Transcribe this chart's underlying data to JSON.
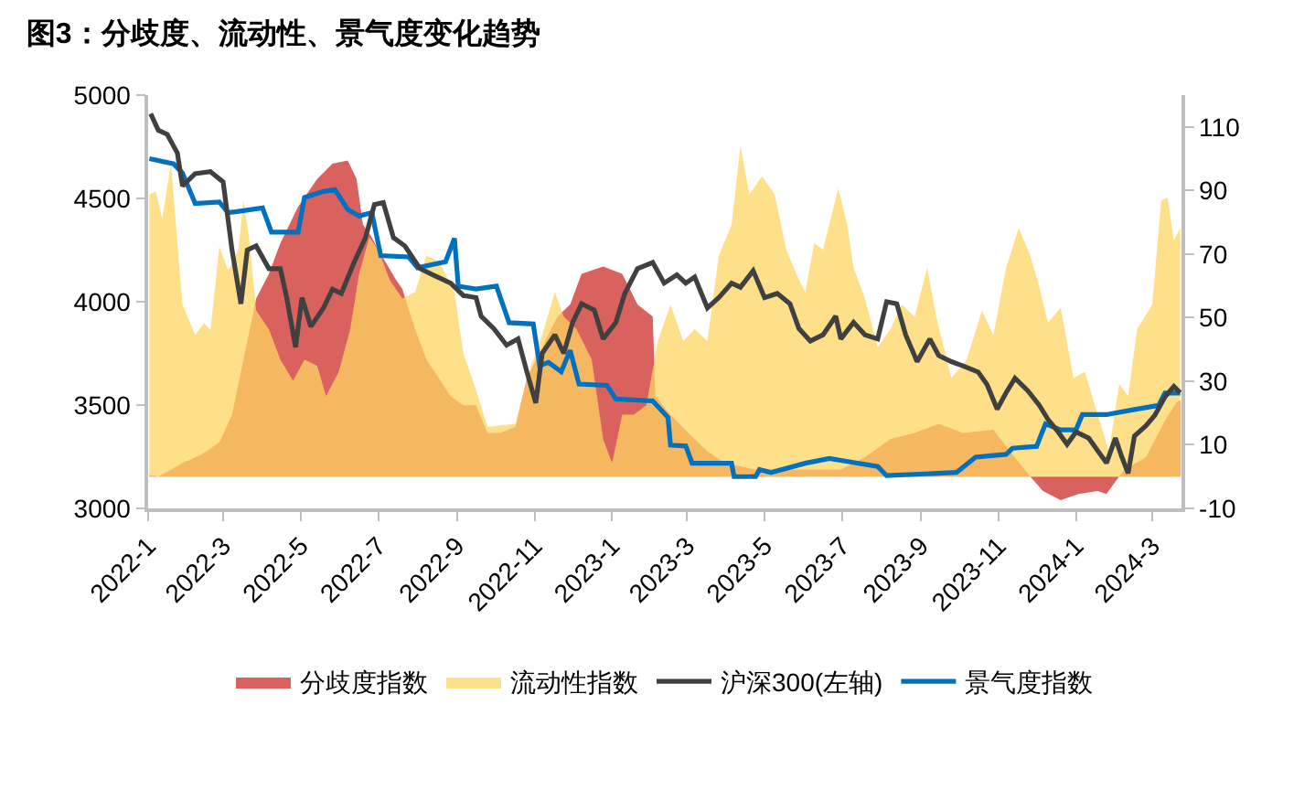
{
  "chart_data": {
    "type": "area",
    "title": "图3：分歧度、流动性、景气度变化趋势",
    "xlim": [
      "2022-01-01",
      "2024-03-24"
    ],
    "xticks": [
      {
        "value": "2022-01-01",
        "label": "2022-1"
      },
      {
        "value": "2022-03-01",
        "label": "2022-3"
      },
      {
        "value": "2022-05-01",
        "label": "2022-5"
      },
      {
        "value": "2022-07-01",
        "label": "2022-7"
      },
      {
        "value": "2022-09-01",
        "label": "2022-9"
      },
      {
        "value": "2022-11-01",
        "label": "2022-11"
      },
      {
        "value": "2023-01-01",
        "label": "2023-1"
      },
      {
        "value": "2023-03-01",
        "label": "2023-3"
      },
      {
        "value": "2023-05-01",
        "label": "2023-5"
      },
      {
        "value": "2023-07-01",
        "label": "2023-7"
      },
      {
        "value": "2023-09-01",
        "label": "2023-9"
      },
      {
        "value": "2023-11-01",
        "label": "2023-11"
      },
      {
        "value": "2024-01-01",
        "label": "2024-1"
      },
      {
        "value": "2024-03-01",
        "label": "2024-3"
      }
    ],
    "ylim": [
      3000,
      5000
    ],
    "yticks": [
      3000,
      3500,
      4000,
      4500,
      5000
    ],
    "y2lim": [
      -10,
      120
    ],
    "y2ticks": [
      -10,
      10,
      30,
      50,
      70,
      90,
      110
    ],
    "legend": "bottom",
    "series": [
      {
        "name": "分歧度指数",
        "axis": "y2",
        "color": "#d9625e",
        "x": [
          "2022-01-02",
          "2022-01-09",
          "2022-01-28",
          "2022-02-12",
          "2022-02-26",
          "2022-03-08",
          "2022-03-17",
          "2022-03-27",
          "2022-04-06",
          "2022-04-15",
          "2022-04-29",
          "2022-05-14",
          "2022-05-26",
          "2022-06-07",
          "2022-06-14",
          "2022-06-19",
          "2022-06-26",
          "2022-07-01",
          "2022-07-15",
          "2022-07-20",
          "2022-07-30",
          "2022-08-08",
          "2022-08-27",
          "2022-09-06",
          "2022-09-16",
          "2022-09-23",
          "2022-09-25",
          "2022-10-05",
          "2022-10-17",
          "2022-10-26",
          "2022-11-07",
          "2022-11-19",
          "2022-11-29",
          "2022-12-08",
          "2022-12-25",
          "2023-01-09",
          "2023-01-21",
          "2023-02-02",
          "2023-02-04",
          "2023-02-16",
          "2023-03-02",
          "2023-03-17",
          "2023-03-31",
          "2023-04-24",
          "2023-06-02",
          "2023-06-30",
          "2023-07-19",
          "2023-08-08",
          "2023-08-27",
          "2023-09-15",
          "2023-10-04",
          "2023-10-28",
          "2023-11-12",
          "2023-11-26",
          "2023-12-06",
          "2023-12-20",
          "2024-01-03",
          "2024-01-18",
          "2024-01-25",
          "2024-02-01",
          "2024-02-08",
          "2024-02-25",
          "2024-03-11",
          "2024-03-20",
          "2024-03-23"
        ],
        "values": [
          0.5,
          0,
          4.2,
          7,
          10.8,
          19.5,
          36.8,
          56,
          63.8,
          73.4,
          84.9,
          93.6,
          98.4,
          99.4,
          93.6,
          79.2,
          75.3,
          71.4,
          61.9,
          59,
          46.4,
          36.8,
          25.3,
          22.4,
          22.4,
          15.7,
          13.7,
          13.7,
          15.7,
          31,
          40.7,
          50.3,
          54.1,
          63.8,
          66.1,
          63.8,
          54.1,
          50.3,
          25.3,
          19.5,
          13.7,
          8,
          4.2,
          2.2,
          2.2,
          2.2,
          6.1,
          11.8,
          13.7,
          16.6,
          13.7,
          14.7,
          7,
          0,
          -4.5,
          -7.4,
          -5.5,
          -4.5,
          -5.5,
          -1.6,
          2.2,
          6.1,
          17.6,
          23.4,
          24
        ]
      },
      {
        "name": "流动性指数",
        "axis": "y2",
        "color": "#fdd663",
        "x": [
          "2022-01-02",
          "2022-01-07",
          "2022-01-12",
          "2022-01-19",
          "2022-01-28",
          "2022-02-07",
          "2022-02-14",
          "2022-02-19",
          "2022-02-26",
          "2022-03-05",
          "2022-03-13",
          "2022-03-17",
          "2022-03-22",
          "2022-03-27",
          "2022-04-06",
          "2022-04-15",
          "2022-04-25",
          "2022-05-04",
          "2022-05-14",
          "2022-05-21",
          "2022-05-31",
          "2022-06-09",
          "2022-06-16",
          "2022-06-24",
          "2022-07-01",
          "2022-07-10",
          "2022-07-20",
          "2022-07-30",
          "2022-08-08",
          "2022-08-18",
          "2022-08-30",
          "2022-09-06",
          "2022-09-16",
          "2022-09-25",
          "2022-10-17",
          "2022-10-26",
          "2022-11-07",
          "2022-11-17",
          "2022-11-24",
          "2022-12-04",
          "2022-12-16",
          "2022-12-25",
          "2023-01-01",
          "2023-01-09",
          "2023-01-18",
          "2023-01-28",
          "2023-02-06",
          "2023-02-16",
          "2023-02-26",
          "2023-03-07",
          "2023-03-17",
          "2023-03-26",
          "2023-04-05",
          "2023-04-12",
          "2023-04-19",
          "2023-04-29",
          "2023-05-09",
          "2023-05-18",
          "2023-05-28",
          "2023-06-02",
          "2023-06-09",
          "2023-06-16",
          "2023-06-28",
          "2023-07-05",
          "2023-07-10",
          "2023-07-19",
          "2023-07-29",
          "2023-08-08",
          "2023-08-17",
          "2023-08-27",
          "2023-09-06",
          "2023-09-13",
          "2023-09-25",
          "2023-10-07",
          "2023-10-19",
          "2023-10-28",
          "2023-11-07",
          "2023-11-17",
          "2023-11-26",
          "2023-12-03",
          "2023-12-10",
          "2023-12-20",
          "2023-12-30",
          "2024-01-08",
          "2024-01-18",
          "2024-01-27",
          "2024-02-04",
          "2024-02-11",
          "2024-02-18",
          "2024-03-01",
          "2024-03-08",
          "2024-03-13",
          "2024-03-18",
          "2024-03-23"
        ],
        "values": [
          88.7,
          89.7,
          81,
          98.4,
          54.1,
          44.5,
          48.4,
          46,
          72.4,
          64.7,
          71.4,
          86.8,
          73.4,
          52.2,
          46.4,
          36.8,
          30.1,
          36.8,
          34.9,
          25.3,
          33,
          46.4,
          63.8,
          75.3,
          71.4,
          61.9,
          56,
          58,
          69.5,
          67.6,
          58,
          38.8,
          27.2,
          15.7,
          16.6,
          31,
          44.5,
          58,
          50.3,
          46.4,
          36.8,
          11.8,
          4.2,
          19.5,
          19.5,
          22.4,
          42.6,
          54.1,
          42.6,
          46.4,
          42.6,
          69.5,
          79.2,
          104.2,
          88.7,
          94.5,
          88.7,
          71.4,
          61.9,
          58,
          73.4,
          71.4,
          90.7,
          79.2,
          65.7,
          56,
          40.7,
          46.4,
          54.1,
          50.3,
          65.7,
          50.3,
          31,
          36.8,
          52.2,
          44.5,
          65.7,
          78.2,
          69.5,
          59.9,
          48.4,
          53.2,
          31,
          33,
          19.5,
          8,
          29.1,
          25.3,
          46.4,
          54.1,
          86.8,
          87.8,
          74.3,
          78.2
        ]
      },
      {
        "name": "沪深300(左轴)",
        "type": "line",
        "axis": "y",
        "color": "#404040",
        "x": [
          "2022-01-03",
          "2022-01-09",
          "2022-01-16",
          "2022-01-24",
          "2022-01-28",
          "2022-02-07",
          "2022-02-19",
          "2022-03-01",
          "2022-03-08",
          "2022-03-15",
          "2022-03-20",
          "2022-03-27",
          "2022-04-06",
          "2022-04-15",
          "2022-04-20",
          "2022-04-27",
          "2022-05-02",
          "2022-05-09",
          "2022-05-19",
          "2022-05-26",
          "2022-06-02",
          "2022-06-12",
          "2022-06-21",
          "2022-06-28",
          "2022-07-05",
          "2022-07-13",
          "2022-07-22",
          "2022-08-03",
          "2022-08-13",
          "2022-08-27",
          "2022-09-06",
          "2022-09-16",
          "2022-09-20",
          "2022-09-30",
          "2022-10-10",
          "2022-10-19",
          "2022-10-26",
          "2022-11-02",
          "2022-11-07",
          "2022-11-17",
          "2022-11-24",
          "2022-12-01",
          "2022-12-08",
          "2022-12-18",
          "2022-12-25",
          "2023-01-04",
          "2023-01-11",
          "2023-01-21",
          "2023-02-02",
          "2023-02-11",
          "2023-02-21",
          "2023-02-28",
          "2023-03-07",
          "2023-03-17",
          "2023-03-26",
          "2023-04-05",
          "2023-04-12",
          "2023-04-22",
          "2023-05-01",
          "2023-05-11",
          "2023-05-21",
          "2023-05-28",
          "2023-06-06",
          "2023-06-16",
          "2023-06-26",
          "2023-06-30",
          "2023-07-10",
          "2023-07-19",
          "2023-07-29",
          "2023-08-05",
          "2023-08-13",
          "2023-08-20",
          "2023-08-29",
          "2023-09-08",
          "2023-09-15",
          "2023-09-25",
          "2023-10-04",
          "2023-10-16",
          "2023-10-23",
          "2023-10-31",
          "2023-11-07",
          "2023-11-14",
          "2023-11-24",
          "2023-12-03",
          "2023-12-10",
          "2023-12-18",
          "2023-12-25",
          "2024-01-01",
          "2024-01-11",
          "2024-01-18",
          "2024-01-25",
          "2024-02-01",
          "2024-02-06",
          "2024-02-11",
          "2024-02-16",
          "2024-02-25",
          "2024-03-03",
          "2024-03-11",
          "2024-03-18",
          "2024-03-23"
        ],
        "values": [
          4910,
          4830,
          4810,
          4720,
          4560,
          4620,
          4630,
          4580,
          4250,
          3990,
          4250,
          4270,
          4160,
          4160,
          4020,
          3780,
          4020,
          3880,
          3970,
          4060,
          4040,
          4190,
          4310,
          4470,
          4480,
          4310,
          4270,
          4160,
          4130,
          4090,
          4030,
          4020,
          3930,
          3870,
          3790,
          3820,
          3660,
          3510,
          3750,
          3840,
          3750,
          3900,
          3990,
          3960,
          3820,
          3900,
          4040,
          4160,
          4190,
          4090,
          4130,
          4090,
          4120,
          3970,
          4020,
          4090,
          4070,
          4150,
          4020,
          4040,
          3990,
          3870,
          3810,
          3840,
          3930,
          3820,
          3900,
          3840,
          3820,
          4000,
          3990,
          3840,
          3710,
          3820,
          3740,
          3710,
          3690,
          3660,
          3600,
          3480,
          3560,
          3630,
          3570,
          3500,
          3430,
          3370,
          3310,
          3370,
          3340,
          3280,
          3220,
          3340,
          3250,
          3170,
          3350,
          3400,
          3450,
          3540,
          3590,
          3560
        ]
      },
      {
        "name": "景气度指数",
        "type": "line",
        "axis": "y2",
        "color": "#0070c0",
        "x": [
          "2022-01-02",
          "2022-01-21",
          "2022-01-28",
          "2022-02-07",
          "2022-02-26",
          "2022-03-05",
          "2022-04-01",
          "2022-04-08",
          "2022-04-29",
          "2022-05-04",
          "2022-05-19",
          "2022-05-28",
          "2022-06-07",
          "2022-06-16",
          "2022-06-26",
          "2022-07-03",
          "2022-07-25",
          "2022-08-01",
          "2022-08-23",
          "2022-08-30",
          "2022-09-02",
          "2022-09-16",
          "2022-10-02",
          "2022-10-12",
          "2022-10-31",
          "2022-11-05",
          "2022-11-12",
          "2022-11-22",
          "2022-11-29",
          "2022-12-06",
          "2022-12-28",
          "2023-01-04",
          "2023-02-02",
          "2023-02-14",
          "2023-02-16",
          "2023-02-28",
          "2023-03-05",
          "2023-04-05",
          "2023-04-07",
          "2023-04-24",
          "2023-04-27",
          "2023-05-06",
          "2023-06-02",
          "2023-06-21",
          "2023-06-30",
          "2023-07-29",
          "2023-08-05",
          "2023-09-29",
          "2023-10-14",
          "2023-11-07",
          "2023-11-12",
          "2023-12-01",
          "2023-12-08",
          "2023-12-20",
          "2024-01-01",
          "2024-01-06",
          "2024-01-25",
          "2024-02-16",
          "2024-03-06",
          "2024-03-11",
          "2024-03-23"
        ],
        "values": [
          100,
          98.4,
          95.5,
          85.9,
          86.4,
          83,
          84.5,
          76.9,
          76.9,
          87.8,
          89.7,
          90.3,
          84,
          82,
          83,
          69.5,
          69.1,
          65.7,
          67.6,
          74.9,
          59.9,
          59,
          59.9,
          48.4,
          48,
          34.9,
          35.9,
          33,
          39.7,
          29.1,
          28.7,
          24.4,
          23.8,
          18.6,
          9.9,
          9.6,
          4.2,
          4.2,
          0,
          0,
          2.2,
          1.3,
          4.2,
          5.7,
          5.1,
          3.2,
          0.3,
          1.3,
          6.1,
          7,
          8.9,
          9.5,
          16.6,
          14.7,
          14.7,
          19.5,
          19.5,
          21.1,
          22.4,
          26.3,
          26.3
        ]
      }
    ]
  }
}
